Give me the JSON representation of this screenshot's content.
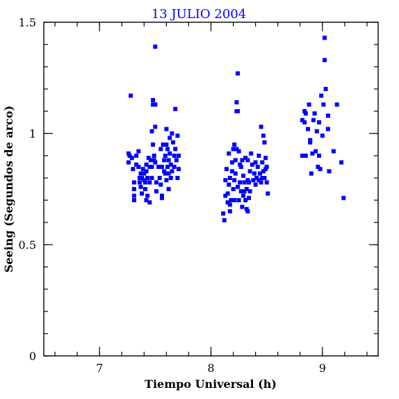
{
  "chart_data": {
    "type": "scatter",
    "title": "13 JULIO 2004",
    "xlabel": "Tiempo Universal (h)",
    "ylabel": "Seeing (Segundos de arco)",
    "xlim": [
      6.5,
      9.5
    ],
    "ylim": [
      0,
      1.5
    ],
    "xticks": [
      7,
      8,
      9
    ],
    "xtick_labels": [
      "7",
      "8",
      "9"
    ],
    "yticks": [
      0,
      0.5,
      1,
      1.5
    ],
    "ytick_labels": [
      "0",
      "0.5",
      "1",
      "1.5"
    ],
    "x_minor_step": 0.2,
    "y_minor_step": 0.1,
    "grid": false,
    "marker_color": "#0000ff",
    "series": [
      {
        "points": [
          [
            7.28,
            1.17
          ],
          [
            7.26,
            0.91
          ],
          [
            7.27,
            0.9
          ],
          [
            7.26,
            0.87
          ],
          [
            7.29,
            0.89
          ],
          [
            7.3,
            0.84
          ],
          [
            7.31,
            0.78
          ],
          [
            7.31,
            0.75
          ],
          [
            7.31,
            0.72
          ],
          [
            7.31,
            0.7
          ],
          [
            7.33,
            0.86
          ],
          [
            7.33,
            0.9
          ],
          [
            7.35,
            0.92
          ],
          [
            7.35,
            0.85
          ],
          [
            7.36,
            0.8
          ],
          [
            7.36,
            0.78
          ],
          [
            7.37,
            0.82
          ],
          [
            7.37,
            0.76
          ],
          [
            7.38,
            0.8
          ],
          [
            7.38,
            0.73
          ],
          [
            7.39,
            0.84
          ],
          [
            7.4,
            0.79
          ],
          [
            7.4,
            0.82
          ],
          [
            7.41,
            0.75
          ],
          [
            7.41,
            0.78
          ],
          [
            7.42,
            0.83
          ],
          [
            7.42,
            0.86
          ],
          [
            7.42,
            0.7
          ],
          [
            7.43,
            0.8
          ],
          [
            7.43,
            0.72
          ],
          [
            7.44,
            0.89
          ],
          [
            7.45,
            0.85
          ],
          [
            7.45,
            0.69
          ],
          [
            7.45,
            0.78
          ],
          [
            7.46,
            0.88
          ],
          [
            7.47,
            1.01
          ],
          [
            7.47,
            0.8
          ],
          [
            7.47,
            0.85
          ],
          [
            7.48,
            1.15
          ],
          [
            7.48,
            1.13
          ],
          [
            7.48,
            0.95
          ],
          [
            7.49,
            0.9
          ],
          [
            7.49,
            0.88
          ],
          [
            7.5,
            1.39
          ],
          [
            7.5,
            1.13
          ],
          [
            7.5,
            1.03
          ],
          [
            7.5,
            0.87
          ],
          [
            7.51,
            0.78
          ],
          [
            7.51,
            0.74
          ],
          [
            7.53,
            0.85
          ],
          [
            7.54,
            0.8
          ],
          [
            7.55,
            0.93
          ],
          [
            7.55,
            0.77
          ],
          [
            7.56,
            0.72
          ],
          [
            7.56,
            0.85
          ],
          [
            7.57,
            0.95
          ],
          [
            7.58,
            0.83
          ],
          [
            7.58,
            0.88
          ],
          [
            7.59,
            0.9
          ],
          [
            7.59,
            0.82
          ],
          [
            7.6,
            1.02
          ],
          [
            7.6,
            0.95
          ],
          [
            7.6,
            0.79
          ],
          [
            7.61,
            0.85
          ],
          [
            7.61,
            0.93
          ],
          [
            7.62,
            0.88
          ],
          [
            7.62,
            0.82
          ],
          [
            7.63,
            0.98
          ],
          [
            7.63,
            0.91
          ],
          [
            7.64,
            0.86
          ],
          [
            7.64,
            0.8
          ],
          [
            7.65,
            1.0
          ],
          [
            7.65,
            0.83
          ],
          [
            7.66,
            0.96
          ],
          [
            7.67,
            0.9
          ],
          [
            7.67,
            0.85
          ],
          [
            7.68,
            1.11
          ],
          [
            7.68,
            0.93
          ],
          [
            7.69,
            0.88
          ],
          [
            7.7,
            0.99
          ],
          [
            7.7,
            0.8
          ],
          [
            7.71,
            0.84
          ],
          [
            7.71,
            0.9
          ],
          [
            7.62,
            0.75
          ],
          [
            7.56,
            0.71
          ]
        ]
      },
      {
        "points": [
          [
            8.11,
            0.64
          ],
          [
            8.12,
            0.61
          ],
          [
            8.13,
            0.72
          ],
          [
            8.13,
            0.79
          ],
          [
            8.14,
            0.84
          ],
          [
            8.15,
            0.69
          ],
          [
            8.15,
            0.73
          ],
          [
            8.16,
            0.77
          ],
          [
            8.16,
            0.91
          ],
          [
            8.17,
            0.65
          ],
          [
            8.17,
            0.68
          ],
          [
            8.17,
            0.8
          ],
          [
            8.18,
            0.7
          ],
          [
            8.19,
            0.83
          ],
          [
            8.19,
            0.87
          ],
          [
            8.2,
            0.75
          ],
          [
            8.2,
            0.93
          ],
          [
            8.21,
            0.95
          ],
          [
            8.21,
            0.7
          ],
          [
            8.21,
            0.79
          ],
          [
            8.22,
            0.88
          ],
          [
            8.22,
            0.82
          ],
          [
            8.23,
            1.1
          ],
          [
            8.23,
            1.14
          ],
          [
            8.23,
            0.93
          ],
          [
            8.24,
            1.27
          ],
          [
            8.24,
            1.1
          ],
          [
            8.24,
            0.76
          ],
          [
            8.25,
            0.92
          ],
          [
            8.25,
            0.7
          ],
          [
            8.26,
            0.86
          ],
          [
            8.26,
            0.78
          ],
          [
            8.27,
            0.85
          ],
          [
            8.27,
            0.74
          ],
          [
            8.28,
            0.88
          ],
          [
            8.28,
            0.67
          ],
          [
            8.29,
            0.72
          ],
          [
            8.29,
            0.81
          ],
          [
            8.3,
            0.78
          ],
          [
            8.3,
            0.74
          ],
          [
            8.31,
            0.89
          ],
          [
            8.31,
            0.7
          ],
          [
            8.32,
            0.75
          ],
          [
            8.32,
            0.66
          ],
          [
            8.33,
            0.65
          ],
          [
            8.33,
            0.79
          ],
          [
            8.34,
            0.71
          ],
          [
            8.34,
            0.78
          ],
          [
            8.35,
            0.74
          ],
          [
            8.35,
            0.83
          ],
          [
            8.36,
            0.91
          ],
          [
            8.37,
            0.86
          ],
          [
            8.38,
            0.79
          ],
          [
            8.39,
            0.82
          ],
          [
            8.4,
            0.77
          ],
          [
            8.4,
            0.87
          ],
          [
            8.41,
            0.8
          ],
          [
            8.42,
            0.85
          ],
          [
            8.43,
            0.79
          ],
          [
            8.43,
            0.9
          ],
          [
            8.44,
            0.82
          ],
          [
            8.45,
            0.78
          ],
          [
            8.45,
            1.03
          ],
          [
            8.46,
            0.87
          ],
          [
            8.46,
            0.8
          ],
          [
            8.47,
            0.99
          ],
          [
            8.47,
            0.83
          ],
          [
            8.48,
            0.96
          ],
          [
            8.48,
            0.8
          ],
          [
            8.49,
            0.89
          ],
          [
            8.49,
            0.84
          ],
          [
            8.5,
            0.78
          ],
          [
            8.5,
            0.85
          ],
          [
            8.51,
            0.73
          ],
          [
            8.33,
            0.88
          ]
        ]
      },
      {
        "points": [
          [
            8.82,
            1.06
          ],
          [
            8.82,
            0.9
          ],
          [
            8.84,
            1.1
          ],
          [
            8.84,
            1.05
          ],
          [
            8.85,
            1.09
          ],
          [
            8.85,
            0.9
          ],
          [
            8.87,
            1.02
          ],
          [
            8.88,
            1.13
          ],
          [
            8.89,
            0.97
          ],
          [
            8.89,
            0.96
          ],
          [
            8.9,
            0.82
          ],
          [
            8.91,
            0.91
          ],
          [
            8.92,
            1.06
          ],
          [
            8.93,
            1.09
          ],
          [
            8.94,
            0.92
          ],
          [
            8.95,
            1.01
          ],
          [
            8.96,
            0.85
          ],
          [
            8.97,
            1.05
          ],
          [
            8.98,
            0.84
          ],
          [
            8.99,
            1.17
          ],
          [
            9.0,
            0.99
          ],
          [
            9.01,
            1.13
          ],
          [
            9.02,
            1.43
          ],
          [
            9.02,
            1.33
          ],
          [
            9.03,
            1.2
          ],
          [
            9.05,
            1.02
          ],
          [
            9.05,
            1.08
          ],
          [
            9.06,
            0.83
          ],
          [
            9.1,
            0.92
          ],
          [
            9.13,
            1.13
          ],
          [
            9.17,
            0.87
          ],
          [
            9.19,
            0.71
          ],
          [
            8.97,
            0.9
          ]
        ]
      }
    ]
  }
}
